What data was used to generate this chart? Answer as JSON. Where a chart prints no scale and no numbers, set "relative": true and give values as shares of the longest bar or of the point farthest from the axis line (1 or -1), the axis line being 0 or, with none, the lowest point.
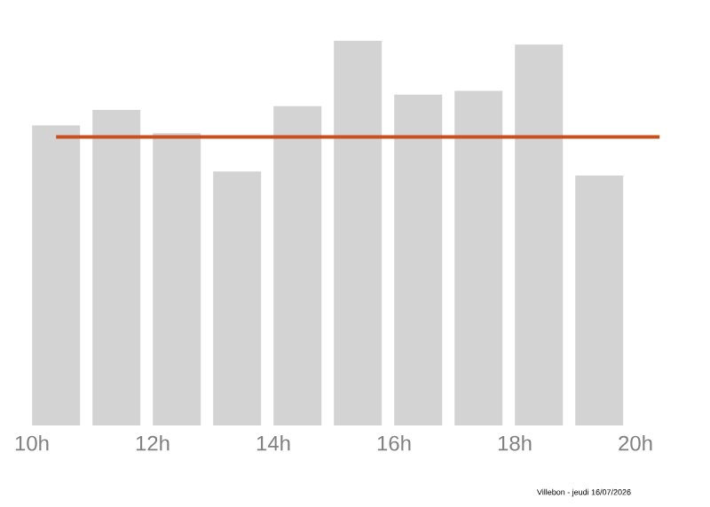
{
  "chart_data": {
    "type": "bar",
    "relative": true,
    "x": [
      10.4,
      11.4,
      12.4,
      13.4,
      14.4,
      15.4,
      16.4,
      17.4,
      18.4,
      19.4
    ],
    "values": [
      0.78,
      0.82,
      0.76,
      0.66,
      0.83,
      1.0,
      0.86,
      0.87,
      0.99,
      0.65
    ],
    "color": "#d3d3d3",
    "xlim": [
      10,
      20.4
    ],
    "xticks": [
      {
        "value": 10,
        "label": "10h"
      },
      {
        "value": 12,
        "label": "12h"
      },
      {
        "value": 14,
        "label": "14h"
      },
      {
        "value": 16,
        "label": "16h"
      },
      {
        "value": 18,
        "label": "18h"
      },
      {
        "value": 20,
        "label": "20h"
      }
    ],
    "ref_lines": [
      {
        "axis": "y",
        "value": 0.75,
        "color": "#c8501e"
      }
    ],
    "annotations": [
      "Villebon - jeudi 16/07/2026"
    ]
  }
}
